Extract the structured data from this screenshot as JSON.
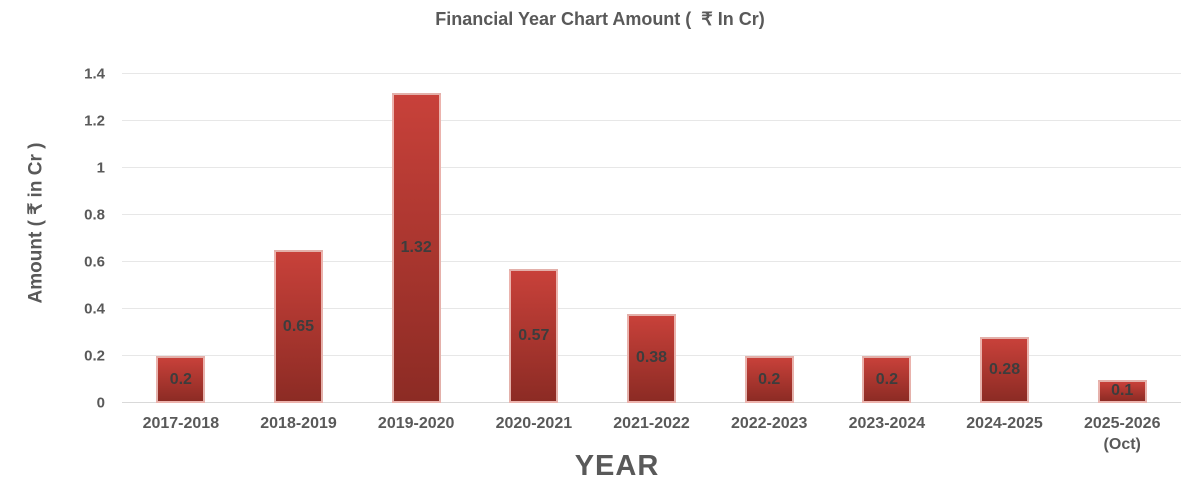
{
  "chart_data": {
    "type": "bar",
    "title": "Financial Year Chart Amount (  ₹ In Cr)",
    "xlabel": "YEAR",
    "ylabel": "Amount ( ₹ in Cr )",
    "categories": [
      "2017-2018",
      "2018-2019",
      "2019-2020",
      "2020-2021",
      "2021-2022",
      "2022-2023",
      "2023-2024",
      "2024-2025",
      "2025-2026\n(Oct)"
    ],
    "values": [
      0.2,
      0.65,
      1.32,
      0.57,
      0.38,
      0.2,
      0.2,
      0.28,
      0.1
    ],
    "data_labels": [
      "0.2",
      "0.65",
      "1.32",
      "0.57",
      "0.38",
      "0.2",
      "0.2",
      "0.28",
      "0.1"
    ],
    "ylim": [
      0,
      1.4
    ],
    "yticks": [
      0,
      0.2,
      0.4,
      0.6,
      0.8,
      1,
      1.2,
      1.4
    ],
    "ytick_labels": [
      "0",
      "0.2",
      "0.4",
      "0.6",
      "0.8",
      "1",
      "1.2",
      "1.4"
    ],
    "grid": true,
    "legend": false
  },
  "colors": {
    "background": "#ffffff",
    "text_gray": "#595959",
    "value_label": "#3d3d3d",
    "bar_gradient_top": "#c8413a",
    "bar_gradient_bottom": "#8c2b24",
    "bar_border": "#f2c8c2",
    "gridline": "#e7e7e7",
    "baseline": "#d9d9d9"
  }
}
